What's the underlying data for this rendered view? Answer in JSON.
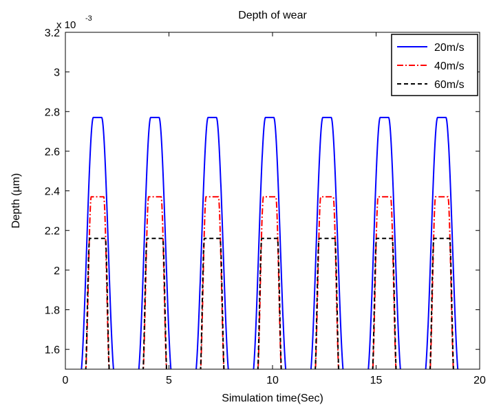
{
  "chart_data": {
    "type": "line",
    "title": "Depth of wear",
    "xlabel": "Simulation time(Sec)",
    "ylabel": "Depth (µm)",
    "exponent_base": "x 10",
    "exponent_power": "-3",
    "xlim": [
      0,
      20
    ],
    "ylim": [
      1.5,
      3.2
    ],
    "x_ticks": [
      0,
      5,
      10,
      15,
      20
    ],
    "y_ticks": [
      1.6,
      1.8,
      2.0,
      2.2,
      2.4,
      2.6,
      2.8,
      3.0,
      3.2
    ],
    "x_tick_labels": [
      "0",
      "5",
      "10",
      "15",
      "20"
    ],
    "y_tick_labels": [
      "1.6",
      "1.8",
      "2",
      "2.2",
      "2.4",
      "2.6",
      "2.8",
      "3",
      "3.2"
    ],
    "grid": false,
    "legend_position": "top-right",
    "period": 2.77,
    "pulse_centers": [
      1.55,
      4.32,
      7.09,
      9.86,
      12.63,
      15.4,
      18.17
    ],
    "series": [
      {
        "name": "20m/s",
        "color": "#0000ff",
        "dash": "solid",
        "peak": 2.77,
        "plateau_halfwidth": 0.2,
        "base_halfwidth": 0.85
      },
      {
        "name": "40m/s",
        "color": "#ff0000",
        "dash": "dashdot",
        "peak": 2.37,
        "plateau_halfwidth": 0.3,
        "base_halfwidth": 0.6
      },
      {
        "name": "60m/s",
        "color": "#000000",
        "dash": "dashed",
        "peak": 2.16,
        "plateau_halfwidth": 0.38,
        "base_halfwidth": 0.6
      }
    ]
  }
}
